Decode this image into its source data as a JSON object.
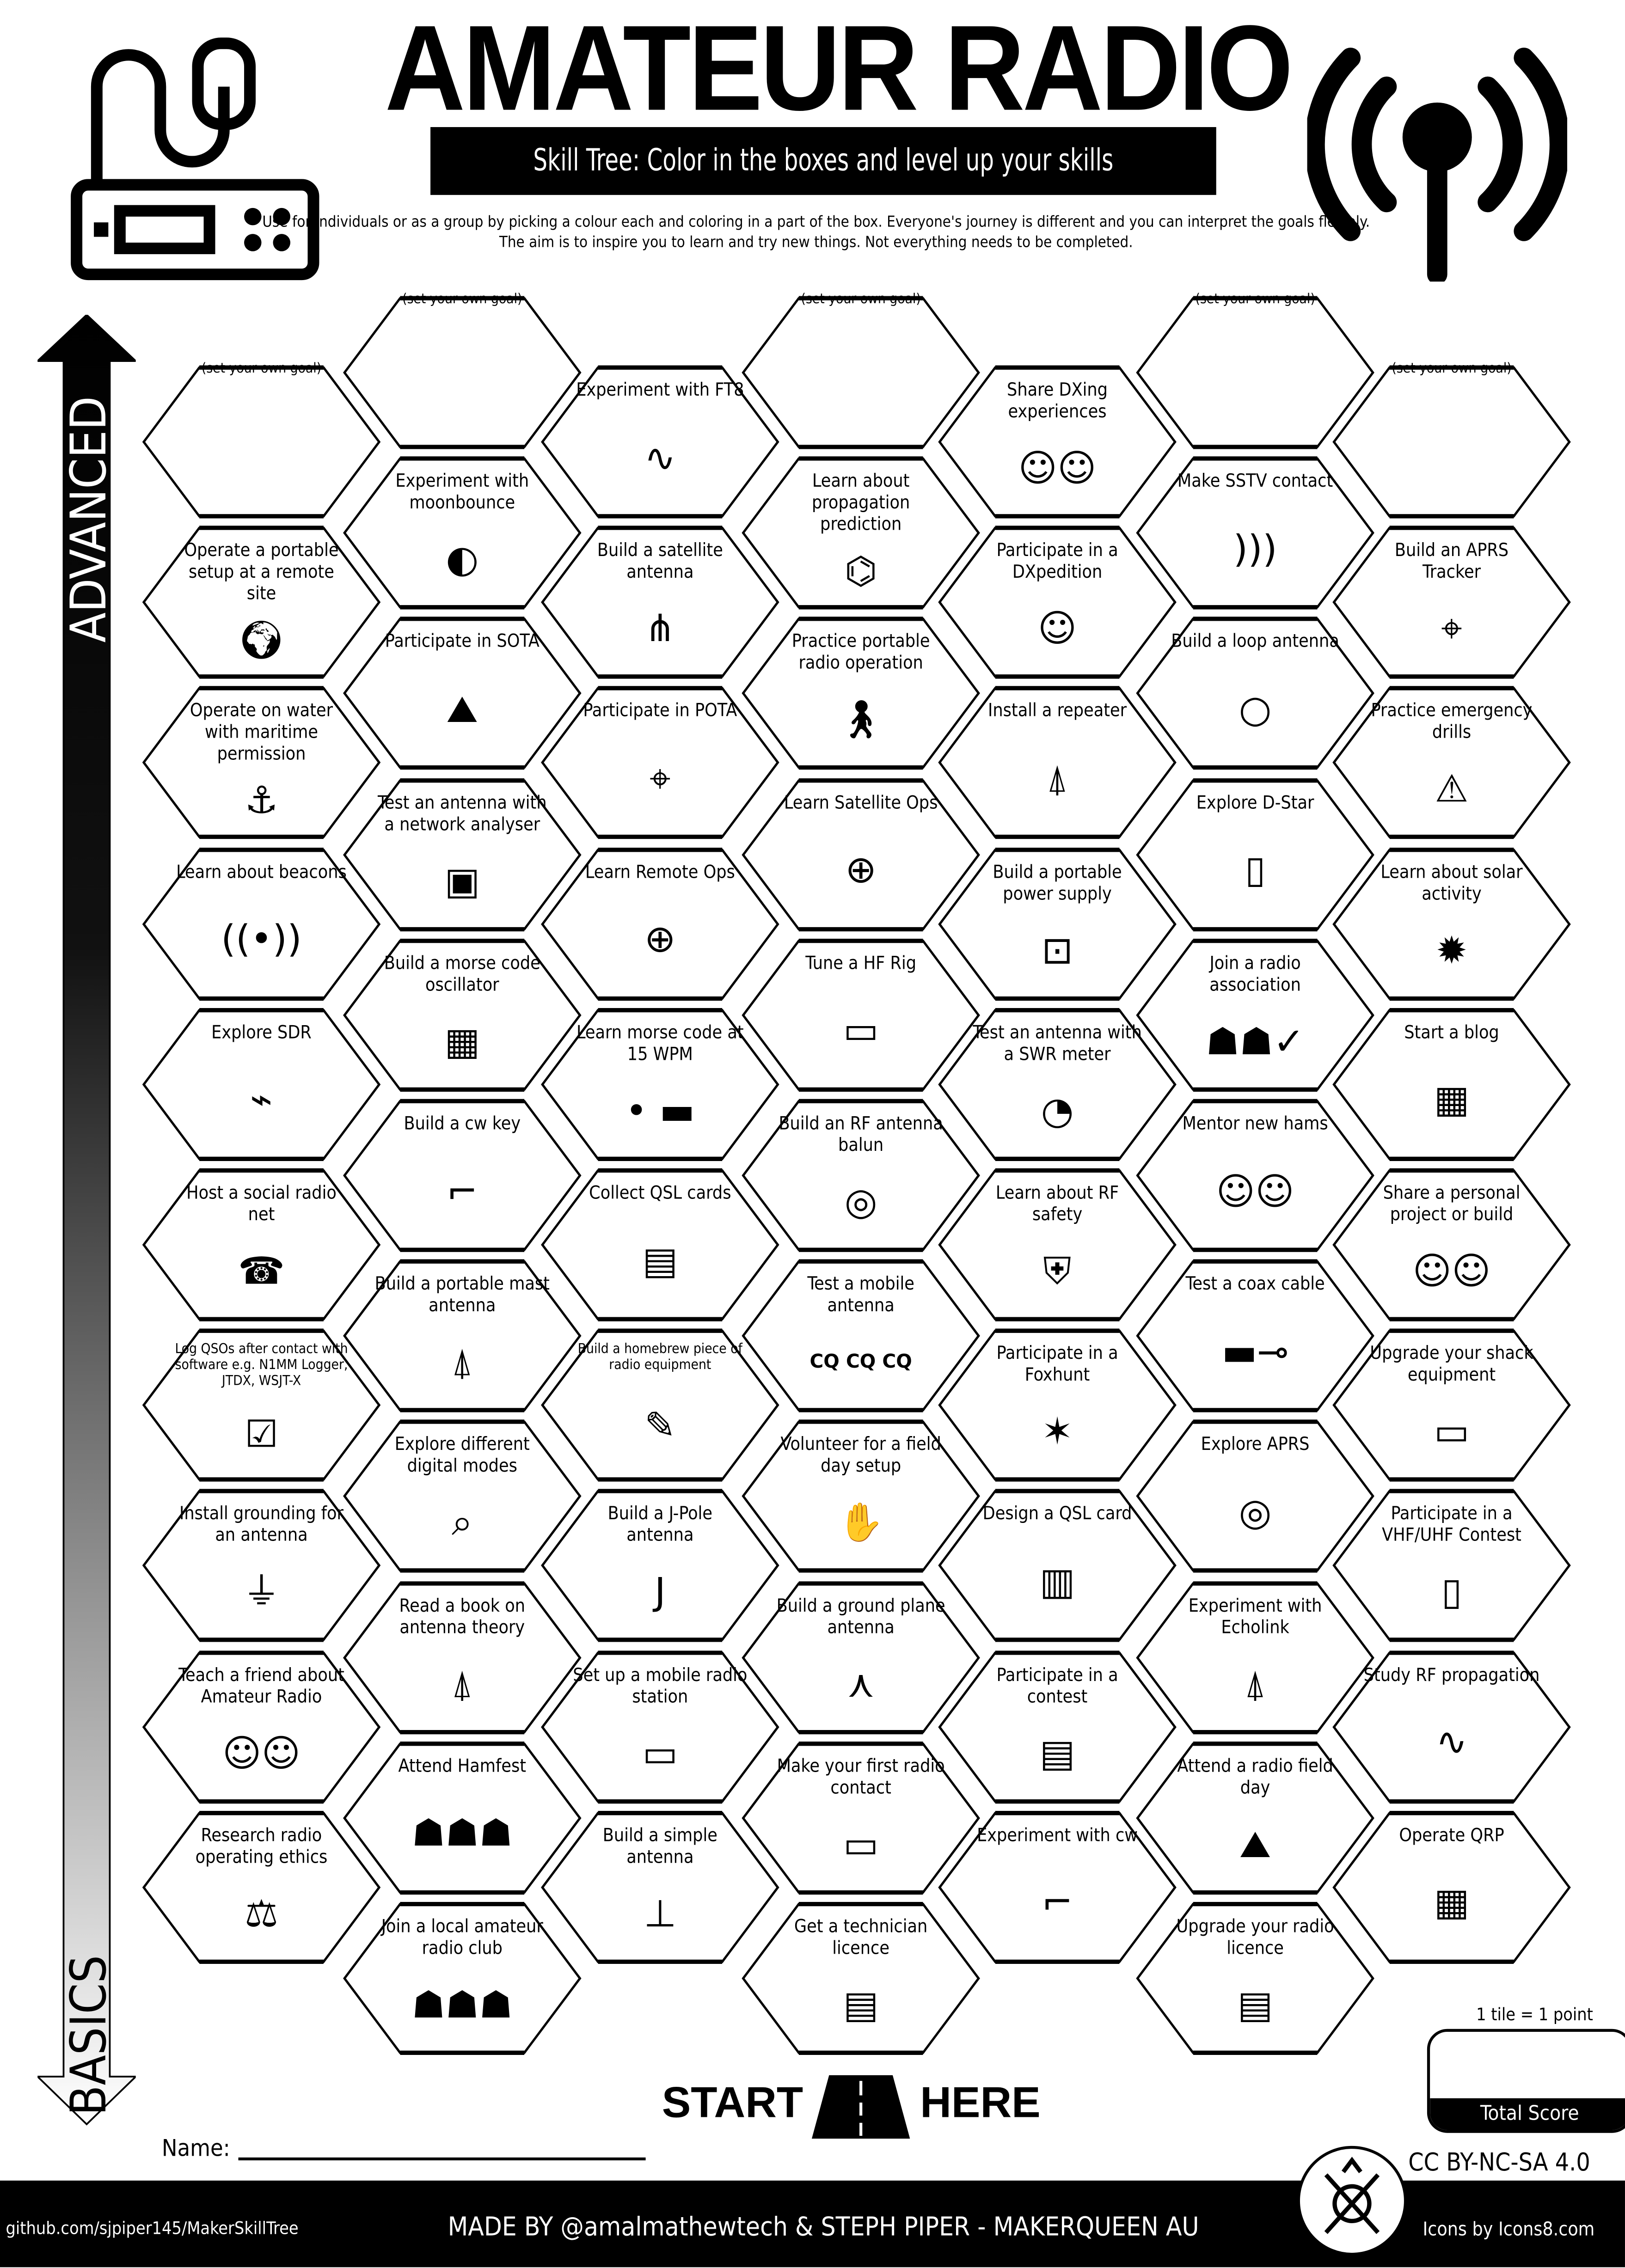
{
  "header": {
    "title": "AMATEUR RADIO",
    "subtitle": "Skill Tree:  Color in the boxes and level up your skills",
    "description": "Use for individuals or as a group by picking a colour each and coloring in a part of the box.  Everyone's journey is different and you can interpret the goals flexibly.  The aim is to inspire you to learn and try new things. Not everything needs to be completed.",
    "left_icon": "radio-transceiver-icon",
    "right_icon": "antenna-signal-icon"
  },
  "axis": {
    "top_label": "ADVANCED",
    "bottom_label": "BASICS"
  },
  "goal_label": "(set your own goal)",
  "columns": [
    [
      {
        "goal": true
      },
      {
        "label": "Operate a portable setup at a remote site",
        "icon": "globe-pin"
      },
      {
        "label": "Operate on water with maritime permission",
        "icon": "anchor"
      },
      {
        "label": "Learn about beacons",
        "icon": "beacon"
      },
      {
        "label": "Explore SDR",
        "icon": "sdr-dongle"
      },
      {
        "label": "Host a social radio net",
        "icon": "radio"
      },
      {
        "label": "Log QSOs after contact with software e.g. N1MM Logger, JTDX, WSJT-X",
        "icon": "computer-checklist",
        "small": true
      },
      {
        "label": "Install grounding for an antenna",
        "icon": "ground"
      },
      {
        "label": "Teach a friend about Amateur Radio",
        "icon": "people-talking"
      },
      {
        "label": "Research radio operating ethics",
        "icon": "scales"
      }
    ],
    [
      {
        "goal": true
      },
      {
        "label": "Experiment with moonbounce",
        "icon": "moon-earth"
      },
      {
        "label": "Participate in SOTA",
        "icon": "mountains"
      },
      {
        "label": "Test an antenna with a network analyser",
        "icon": "analyser"
      },
      {
        "label": "Build a morse code oscillator",
        "icon": "circuit-board"
      },
      {
        "label": "Build a cw key",
        "icon": "morse-key"
      },
      {
        "label": "Build a portable mast antenna",
        "icon": "mast"
      },
      {
        "label": "Explore different digital modes",
        "icon": "magnifier"
      },
      {
        "label": "Read a book on antenna theory",
        "icon": "antenna-tower"
      },
      {
        "label": "Attend Hamfest",
        "icon": "crowd"
      },
      {
        "label": "Join a local amateur radio club",
        "icon": "group"
      }
    ],
    [
      {
        "label": "Experiment with FT8",
        "icon": "waveform"
      },
      {
        "label": "Build a satellite antenna",
        "icon": "yagi"
      },
      {
        "label": "Participate in POTA",
        "icon": "map"
      },
      {
        "label": "Learn Remote Ops",
        "icon": "compass"
      },
      {
        "label": "Learn morse code at 15 WPM",
        "icon": "dot-dash"
      },
      {
        "label": "Collect QSL cards",
        "icon": "cards"
      },
      {
        "label": "Build a homebrew piece of radio equipment",
        "icon": "soldering",
        "small": true
      },
      {
        "label": "Build a J-Pole antenna",
        "icon": "j-pole"
      },
      {
        "label": "Set up a mobile radio station",
        "icon": "mobile-radio"
      },
      {
        "label": "Build a simple antenna",
        "icon": "dipole"
      }
    ],
    [
      {
        "goal": true
      },
      {
        "label": "Learn about propagation prediction",
        "icon": "telescope"
      },
      {
        "label": "Practice portable radio operation",
        "icon": "hiker"
      },
      {
        "label": "Learn Satellite Ops",
        "icon": "satellite-globe"
      },
      {
        "label": "Tune a HF Rig",
        "icon": "hf-rig"
      },
      {
        "label": "Build an RF antenna balun",
        "icon": "toroid"
      },
      {
        "label": "Test a mobile antenna",
        "icon": "text",
        "text": "CQ CQ CQ"
      },
      {
        "label": "Volunteer for a field day setup",
        "icon": "hands"
      },
      {
        "label": "Build a ground plane antenna",
        "icon": "ground-plane"
      },
      {
        "label": "Make your first radio contact",
        "icon": "mic-radio"
      },
      {
        "label": "Get a technician licence",
        "icon": "id-card"
      }
    ],
    [
      {
        "label": "Share DXing experiences",
        "icon": "people-talking"
      },
      {
        "label": "Participate in a DXpedition",
        "icon": "qsl-person"
      },
      {
        "label": "Install a repeater",
        "icon": "repeater-tower"
      },
      {
        "label": "Build a portable power supply",
        "icon": "power-supply"
      },
      {
        "label": "Test an antenna with a SWR meter",
        "icon": "swr-meter"
      },
      {
        "label": "Learn about RF safety",
        "icon": "shield-check"
      },
      {
        "label": "Participate in a Foxhunt",
        "icon": "fox"
      },
      {
        "label": "Design a QSL card",
        "icon": "qsl-card"
      },
      {
        "label": "Participate in a contest",
        "icon": "certificate"
      },
      {
        "label": "Experiment with cw",
        "icon": "morse-key"
      }
    ],
    [
      {
        "goal": true
      },
      {
        "label": "Make SSTV contact",
        "icon": "signal-waves"
      },
      {
        "label": "Build a loop antenna",
        "icon": "loop"
      },
      {
        "label": "Explore D-Star",
        "icon": "handheld-radio"
      },
      {
        "label": "Join a radio association",
        "icon": "group-check"
      },
      {
        "label": "Mentor new hams",
        "icon": "people-talking"
      },
      {
        "label": "Test a coax cable",
        "icon": "coax"
      },
      {
        "label": "Explore APRS",
        "icon": "target-signal"
      },
      {
        "label": "Experiment with Echolink",
        "icon": "tower"
      },
      {
        "label": "Attend a radio field day",
        "icon": "mountains"
      },
      {
        "label": "Upgrade your radio licence",
        "icon": "licence"
      }
    ],
    [
      {
        "goal": true
      },
      {
        "label": "Build an APRS Tracker",
        "icon": "location-pin"
      },
      {
        "label": "Practice emergency drills",
        "icon": "siren"
      },
      {
        "label": "Learn about solar activity",
        "icon": "sun"
      },
      {
        "label": "Start a blog",
        "icon": "blog"
      },
      {
        "label": "Share a personal project or build",
        "icon": "people-talking"
      },
      {
        "label": "Upgrade your shack equipment",
        "icon": "shack"
      },
      {
        "label": "Participate in a VHF/UHF Contest",
        "icon": "handheld-radio"
      },
      {
        "label": "Study RF propagation",
        "icon": "waveform"
      },
      {
        "label": "Operate QRP",
        "icon": "circuit-board"
      }
    ]
  ],
  "start": {
    "left": "START",
    "right": "HERE"
  },
  "name_label": "Name:",
  "score": {
    "note": "1 tile = 1 point",
    "label": "Total Score"
  },
  "footer": {
    "license": "CC BY-NC-SA 4.0",
    "github": "github.com/sjpiper145/MakerSkillTree",
    "made_by": "MADE BY @amalmathewtech & STEPH PIPER  -  MAKERQUEEN AU",
    "icons_credit": "Icons by Icons8.com",
    "logo": "maker-tools-logo"
  }
}
